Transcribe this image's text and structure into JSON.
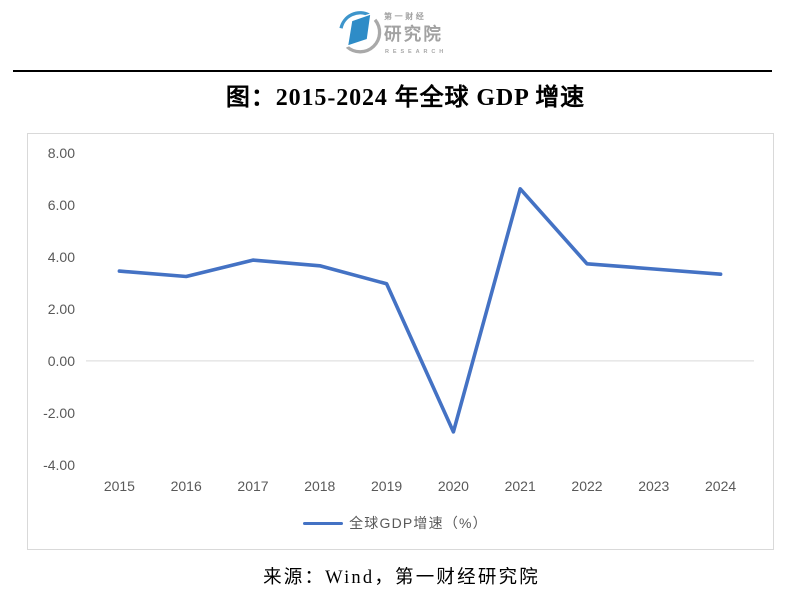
{
  "header": {
    "logo": {
      "name": "yicai-research-institute-logo",
      "line1": "第一财经",
      "line2": "研究院",
      "line3": "RESEARCH",
      "blue": "#2e8cc7",
      "arc_blue": "#3d95cb",
      "gray": "#a9a9a9"
    }
  },
  "title": "图：2015-2024 年全球 GDP 增速",
  "legend": {
    "label": "全球GDP增速（%）"
  },
  "source": "来源：Wind，第一财经研究院",
  "colors": {
    "series_line": "#4472c4",
    "axis_text": "#595959",
    "gridline": "#d9d9d9",
    "frame_border": "#d9d9d9",
    "divider": "#000000"
  },
  "chart_data": {
    "type": "line",
    "title": "图：2015-2024 年全球 GDP 增速",
    "categories": [
      "2015",
      "2016",
      "2017",
      "2018",
      "2019",
      "2020",
      "2021",
      "2022",
      "2023",
      "2024"
    ],
    "series": [
      {
        "name": "全球GDP增速（%）",
        "color": "#4472c4",
        "values": [
          3.45,
          3.24,
          3.87,
          3.65,
          2.96,
          -2.73,
          6.61,
          3.73,
          3.53,
          3.33
        ]
      }
    ],
    "xlabel": "",
    "ylabel": "",
    "ylim": [
      -4,
      8
    ],
    "ytick_step": 2,
    "yticks": [
      8,
      6,
      4,
      2,
      0,
      -2,
      -4
    ],
    "ytick_labels": [
      "8.00",
      "6.00",
      "4.00",
      "2.00",
      "0.00",
      "-2.00",
      "-4.00"
    ],
    "grid": "zero-line-only",
    "legend_position": "bottom-center",
    "source": "来源：Wind，第一财经研究院"
  }
}
